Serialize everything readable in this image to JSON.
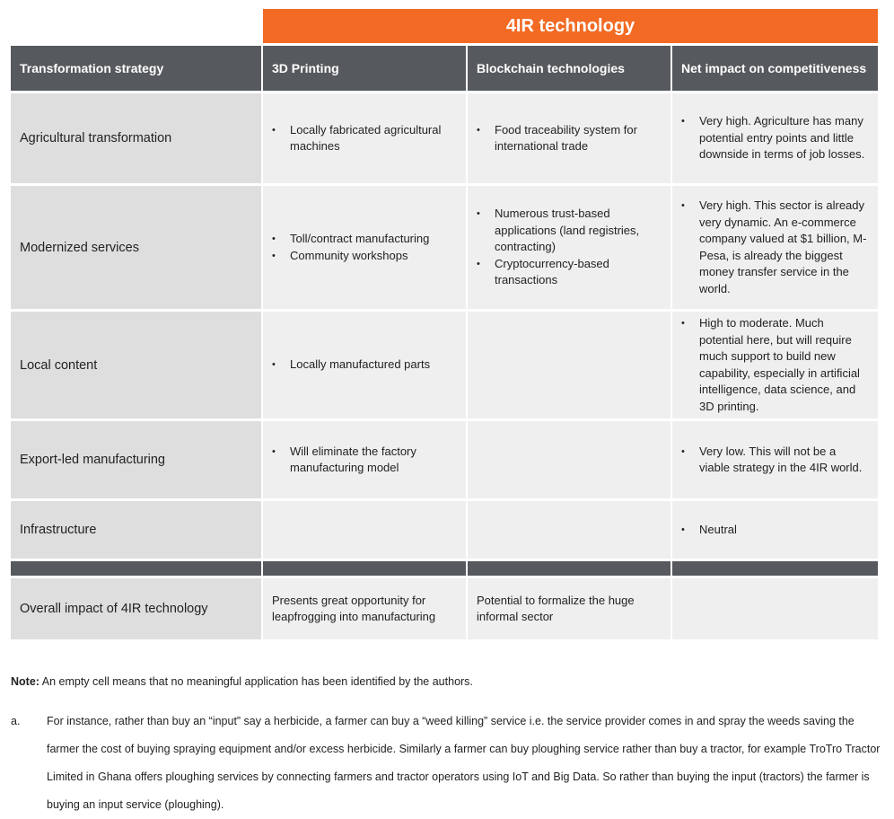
{
  "group_header": "4IR technology",
  "headers": [
    "Transformation strategy",
    "3D Printing",
    "Blockchain technologies",
    "Net impact on competitiveness"
  ],
  "rows": [
    {
      "strategy": "Agricultural transformation",
      "printing": [
        "Locally fabricated agricultural machines"
      ],
      "blockchain": [
        "Food traceability system for international trade"
      ],
      "impact": [
        "Very high. Agriculture has many potential entry points and little downside in terms of job losses."
      ]
    },
    {
      "strategy": "Modernized services",
      "printing": [
        "Toll/contract manufacturing",
        "Community workshops"
      ],
      "blockchain": [
        "Numerous trust-based applications (land registries, contracting)",
        "Cryptocurrency-based transactions"
      ],
      "impact": [
        "Very high. This sector is already very dynamic. An e-commerce company valued at $1 billion, M-Pesa, is already the biggest money transfer service in the world."
      ]
    },
    {
      "strategy": "Local content",
      "printing": [
        "Locally manufactured parts"
      ],
      "blockchain": [],
      "impact": [
        "High to moderate. Much potential here, but will require much support to build new capability, especially in artificial intelligence, data science, and 3D printing."
      ]
    },
    {
      "strategy": "Export-led manufacturing",
      "printing": [
        "Will eliminate the factory manufacturing model"
      ],
      "blockchain": [],
      "impact": [
        "Very low. This will not be a viable strategy in the 4IR world."
      ]
    },
    {
      "strategy": "Infrastructure",
      "printing": [],
      "blockchain": [],
      "impact": [
        "Neutral"
      ]
    }
  ],
  "overall": {
    "label": "Overall impact of 4IR technology",
    "printing": "Presents great opportunity for leapfrogging into manufacturing",
    "blockchain": "Potential to formalize the huge informal sector",
    "impact": ""
  },
  "note": {
    "label": "Note:",
    "text": " An empty cell means that no meaningful application has been identified by the authors."
  },
  "footnote": {
    "label": "a.",
    "text": "For instance, rather than buy an “input” say a herbicide, a farmer can buy a “weed killing” service i.e. the service provider comes in and spray the weeds saving the farmer the cost of buying spraying equipment and/or excess herbicide. Similarly a farmer can buy ploughing service rather than buy a tractor, for example TroTro Tractor Limited in Ghana offers ploughing services by connecting farmers and tractor operators using IoT and Big Data. So rather than buying the input (tractors) the farmer is buying an input service (ploughing)."
  }
}
